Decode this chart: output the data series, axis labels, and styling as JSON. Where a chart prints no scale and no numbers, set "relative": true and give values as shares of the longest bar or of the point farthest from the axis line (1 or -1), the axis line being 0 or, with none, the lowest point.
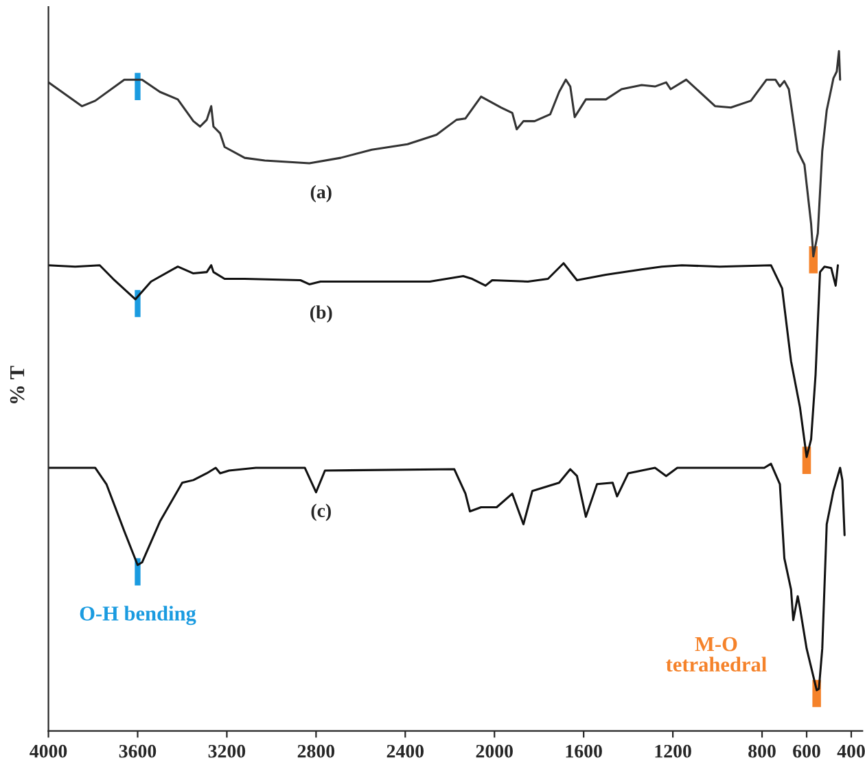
{
  "chart_data": {
    "type": "line",
    "relative": true,
    "ylabel": "% T",
    "xlim": [
      4000,
      350
    ],
    "xticks": [
      4000,
      3600,
      3200,
      2800,
      2400,
      2000,
      1600,
      1200,
      800,
      600,
      400
    ],
    "grid": false,
    "marker": "none",
    "line_style": "solid",
    "annotations": [
      {
        "text": "O-H bending",
        "x": 3600,
        "y": 0.244
      },
      {
        "text": "M-O\ntetrahedral",
        "x": 555,
        "y": 0.06
      }
    ],
    "series": [
      {
        "name": "(a)",
        "color": "#333333",
        "x": [
          4000,
          3850,
          3790,
          3660,
          3580,
          3500,
          3420,
          3350,
          3320,
          3290,
          3270,
          3260,
          3230,
          3210,
          3120,
          3030,
          2830,
          2690,
          2550,
          2390,
          2260,
          2170,
          2130,
          2060,
          1970,
          1920,
          1900,
          1870,
          1820,
          1750,
          1710,
          1680,
          1660,
          1640,
          1590,
          1500,
          1430,
          1340,
          1280,
          1230,
          1210,
          1140,
          1010,
          940,
          850,
          780,
          740,
          720,
          700,
          680,
          640,
          610,
          580,
          570,
          550,
          530,
          510,
          490,
          480,
          465,
          455,
          450
        ],
        "values": [
          0.954,
          0.919,
          0.927,
          0.958,
          0.958,
          0.94,
          0.929,
          0.897,
          0.889,
          0.899,
          0.919,
          0.889,
          0.879,
          0.859,
          0.843,
          0.839,
          0.835,
          0.843,
          0.855,
          0.863,
          0.877,
          0.899,
          0.901,
          0.933,
          0.917,
          0.909,
          0.885,
          0.897,
          0.897,
          0.907,
          0.94,
          0.958,
          0.948,
          0.903,
          0.929,
          0.929,
          0.944,
          0.95,
          0.948,
          0.954,
          0.944,
          0.958,
          0.919,
          0.917,
          0.927,
          0.958,
          0.958,
          0.948,
          0.956,
          0.944,
          0.853,
          0.833,
          0.746,
          0.698,
          0.732,
          0.853,
          0.913,
          0.944,
          0.96,
          0.97,
          1.0,
          0.958
        ]
      },
      {
        "name": "(b)",
        "color": "#111111",
        "x": [
          4000,
          3880,
          3770,
          3710,
          3610,
          3540,
          3420,
          3350,
          3290,
          3270,
          3260,
          3210,
          3120,
          2870,
          2830,
          2780,
          2290,
          2140,
          2100,
          2040,
          2010,
          1850,
          1760,
          1690,
          1630,
          1500,
          1340,
          1250,
          1160,
          990,
          760,
          710,
          670,
          630,
          600,
          580,
          560,
          540,
          520,
          490,
          470,
          460
        ],
        "values": [
          0.685,
          0.683,
          0.685,
          0.665,
          0.635,
          0.661,
          0.683,
          0.673,
          0.675,
          0.685,
          0.675,
          0.665,
          0.665,
          0.663,
          0.657,
          0.661,
          0.661,
          0.669,
          0.665,
          0.655,
          0.663,
          0.661,
          0.665,
          0.688,
          0.663,
          0.671,
          0.679,
          0.683,
          0.685,
          0.683,
          0.685,
          0.651,
          0.544,
          0.476,
          0.403,
          0.429,
          0.524,
          0.675,
          0.683,
          0.681,
          0.655,
          0.685
        ]
      },
      {
        "name": "(c)",
        "color": "#111111",
        "x": [
          4000,
          3790,
          3740,
          3660,
          3600,
          3580,
          3500,
          3400,
          3350,
          3290,
          3250,
          3230,
          3190,
          3070,
          2850,
          2800,
          2760,
          2180,
          2130,
          2110,
          2060,
          1990,
          1920,
          1870,
          1830,
          1710,
          1660,
          1630,
          1590,
          1540,
          1470,
          1450,
          1400,
          1280,
          1230,
          1180,
          1110,
          790,
          760,
          720,
          700,
          670,
          660,
          640,
          630,
          600,
          555,
          545,
          530,
          510,
          480,
          450,
          440,
          430
        ],
        "values": [
          0.387,
          0.387,
          0.363,
          0.294,
          0.244,
          0.248,
          0.308,
          0.365,
          0.369,
          0.379,
          0.387,
          0.379,
          0.383,
          0.387,
          0.387,
          0.351,
          0.383,
          0.385,
          0.349,
          0.323,
          0.329,
          0.329,
          0.349,
          0.304,
          0.353,
          0.365,
          0.385,
          0.375,
          0.315,
          0.363,
          0.365,
          0.345,
          0.379,
          0.387,
          0.375,
          0.387,
          0.387,
          0.387,
          0.393,
          0.363,
          0.254,
          0.208,
          0.163,
          0.198,
          0.181,
          0.121,
          0.06,
          0.062,
          0.121,
          0.304,
          0.353,
          0.387,
          0.369,
          0.288
        ]
      }
    ]
  }
}
